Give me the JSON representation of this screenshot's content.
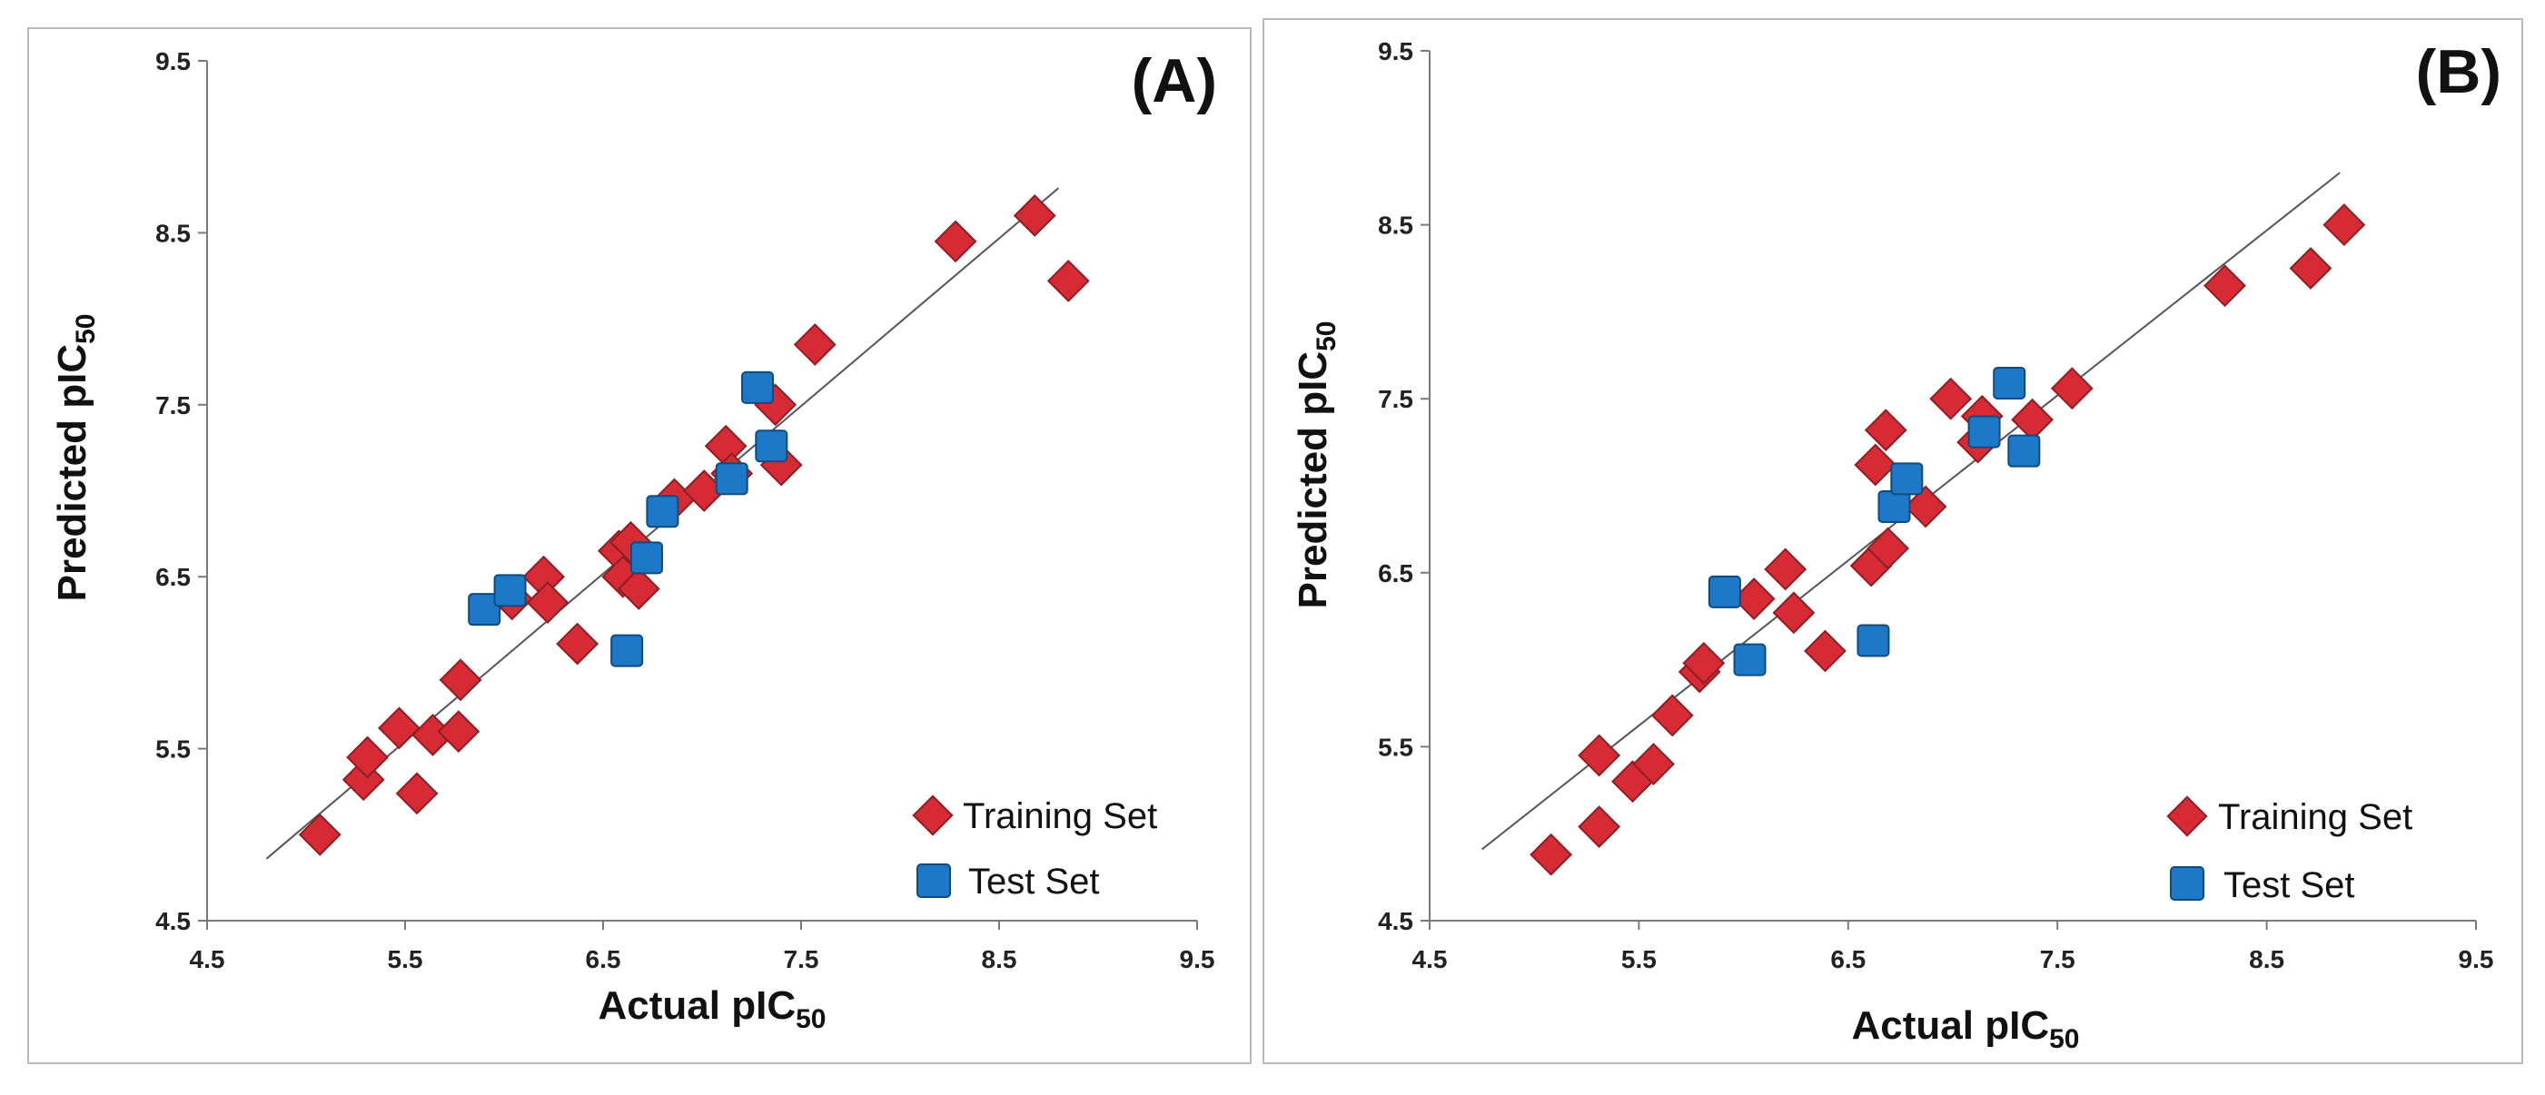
{
  "chart_data": [
    {
      "id": "A",
      "type": "scatter",
      "panel_label": "(A)",
      "xlabel_main": "Actual pIC",
      "xlabel_sub": "50",
      "ylabel_main": "Predicted pIC",
      "ylabel_sub": "50",
      "xlim": [
        4.5,
        9.5
      ],
      "ylim": [
        4.5,
        9.5
      ],
      "xticks": [
        "4.5",
        "5.5",
        "6.5",
        "7.5",
        "8.5",
        "9.5"
      ],
      "yticks": [
        "4.5",
        "5.5",
        "6.5",
        "7.5",
        "8.5",
        "9.5"
      ],
      "trendline": {
        "x": [
          4.8,
          8.8
        ],
        "y": [
          4.86,
          8.76
        ]
      },
      "legend": {
        "training": "Training Set",
        "test": "Test Set",
        "position": "bottom-right"
      },
      "series": [
        {
          "name": "Training Set",
          "marker": "diamond",
          "color": "#d62b35",
          "points": [
            [
              5.07,
              5.0
            ],
            [
              5.29,
              5.32
            ],
            [
              5.31,
              5.45
            ],
            [
              5.47,
              5.62
            ],
            [
              5.56,
              5.24
            ],
            [
              5.64,
              5.58
            ],
            [
              5.77,
              5.6
            ],
            [
              5.78,
              5.9
            ],
            [
              6.04,
              6.37
            ],
            [
              6.2,
              6.5
            ],
            [
              6.22,
              6.35
            ],
            [
              6.37,
              6.11
            ],
            [
              6.58,
              6.65
            ],
            [
              6.6,
              6.5
            ],
            [
              6.64,
              6.7
            ],
            [
              6.68,
              6.43
            ],
            [
              6.86,
              6.95
            ],
            [
              7.01,
              7.0
            ],
            [
              7.12,
              7.26
            ],
            [
              7.15,
              7.1
            ],
            [
              7.37,
              7.5
            ],
            [
              7.4,
              7.15
            ],
            [
              7.57,
              7.85
            ],
            [
              8.28,
              8.45
            ],
            [
              8.68,
              8.6
            ],
            [
              8.85,
              8.22
            ]
          ]
        },
        {
          "name": "Test Set",
          "marker": "square",
          "color": "#1e78c8",
          "points": [
            [
              5.9,
              6.31
            ],
            [
              6.03,
              6.42
            ],
            [
              6.62,
              6.07
            ],
            [
              6.72,
              6.61
            ],
            [
              6.8,
              6.88
            ],
            [
              7.15,
              7.07
            ],
            [
              7.28,
              7.6
            ],
            [
              7.35,
              7.26
            ]
          ]
        }
      ]
    },
    {
      "id": "B",
      "type": "scatter",
      "panel_label": "(B)",
      "xlabel_main": "Actual pIC",
      "xlabel_sub": "50",
      "ylabel_main": "Predicted pIC",
      "ylabel_sub": "50",
      "xlim": [
        4.5,
        9.5
      ],
      "ylim": [
        4.5,
        9.5
      ],
      "xticks": [
        "4.5",
        "5.5",
        "6.5",
        "7.5",
        "8.5",
        "9.5"
      ],
      "yticks": [
        "4.5",
        "5.5",
        "6.5",
        "7.5",
        "8.5",
        "9.5"
      ],
      "trendline": {
        "x": [
          4.75,
          8.85
        ],
        "y": [
          4.91,
          8.8
        ]
      },
      "legend": {
        "training": "Training Set",
        "test": "Test Set",
        "position": "bottom-right"
      },
      "series": [
        {
          "name": "Training Set",
          "marker": "diamond",
          "color": "#d62b35",
          "points": [
            [
              5.08,
              4.88
            ],
            [
              5.31,
              5.04
            ],
            [
              5.31,
              5.45
            ],
            [
              5.47,
              5.3
            ],
            [
              5.57,
              5.4
            ],
            [
              5.66,
              5.68
            ],
            [
              5.79,
              5.93
            ],
            [
              5.81,
              5.98
            ],
            [
              6.05,
              6.35
            ],
            [
              6.2,
              6.52
            ],
            [
              6.24,
              6.27
            ],
            [
              6.39,
              6.05
            ],
            [
              6.61,
              6.54
            ],
            [
              6.63,
              7.12
            ],
            [
              6.68,
              7.32
            ],
            [
              6.69,
              6.64
            ],
            [
              6.87,
              6.88
            ],
            [
              6.99,
              7.5
            ],
            [
              7.12,
              7.25
            ],
            [
              7.14,
              7.4
            ],
            [
              7.38,
              7.38
            ],
            [
              7.57,
              7.56
            ],
            [
              8.3,
              8.15
            ],
            [
              8.71,
              8.25
            ],
            [
              8.87,
              8.5
            ]
          ]
        },
        {
          "name": "Test Set",
          "marker": "square",
          "color": "#1e78c8",
          "points": [
            [
              5.91,
              6.39
            ],
            [
              6.03,
              6.0
            ],
            [
              6.62,
              6.11
            ],
            [
              6.72,
              6.88
            ],
            [
              6.78,
              7.04
            ],
            [
              7.15,
              7.31
            ],
            [
              7.27,
              7.59
            ],
            [
              7.34,
              7.2
            ]
          ]
        }
      ]
    }
  ]
}
